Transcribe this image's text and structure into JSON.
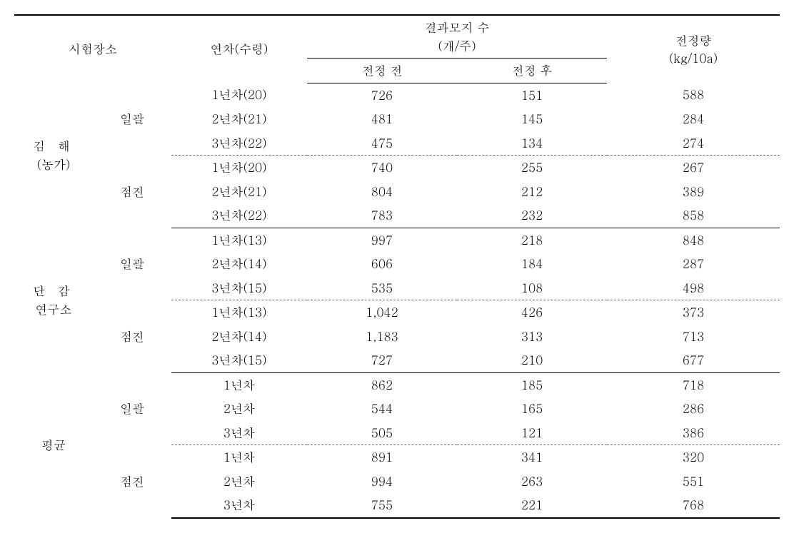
{
  "columns": {
    "site": "시험장소",
    "yearAge": "연차(수령)",
    "branchesGroup": "결과모지 수\n(개/주)",
    "before": "전정 전",
    "after": "전정 후",
    "amount": "전정량\n(kg/10a)"
  },
  "siteLabels": {
    "s1a": "김   해",
    "s1b": "(농가)",
    "s2a": "단   감",
    "s2b": "연구소",
    "s3": "평균"
  },
  "methodLabels": {
    "batch": "일괄",
    "grad": "점진"
  },
  "rows": {
    "s1": {
      "batch": [
        {
          "year": "1년차(20)",
          "before": "726",
          "after": "151",
          "amt": "588"
        },
        {
          "year": "2년차(21)",
          "before": "481",
          "after": "145",
          "amt": "284"
        },
        {
          "year": "3년차(22)",
          "before": "475",
          "after": "134",
          "amt": "274"
        }
      ],
      "grad": [
        {
          "year": "1년차(20)",
          "before": "740",
          "after": "255",
          "amt": "267"
        },
        {
          "year": "2년차(21)",
          "before": "804",
          "after": "212",
          "amt": "389"
        },
        {
          "year": "3년차(22)",
          "before": "783",
          "after": "232",
          "amt": "858"
        }
      ]
    },
    "s2": {
      "batch": [
        {
          "year": "1년차(13)",
          "before": "997",
          "after": "218",
          "amt": "848"
        },
        {
          "year": "2년차(14)",
          "before": "606",
          "after": "184",
          "amt": "287"
        },
        {
          "year": "3년차(15)",
          "before": "535",
          "after": "108",
          "amt": "498"
        }
      ],
      "grad": [
        {
          "year": "1년차(13)",
          "before": "1,042",
          "after": "426",
          "amt": "373"
        },
        {
          "year": "2년차(14)",
          "before": "1,183",
          "after": "313",
          "amt": "713"
        },
        {
          "year": "3년차(15)",
          "before": "727",
          "after": "210",
          "amt": "677"
        }
      ]
    },
    "s3": {
      "batch": [
        {
          "year": "1년차",
          "before": "862",
          "after": "185",
          "amt": "718"
        },
        {
          "year": "2년차",
          "before": "544",
          "after": "165",
          "amt": "286"
        },
        {
          "year": "3년차",
          "before": "505",
          "after": "121",
          "amt": "386"
        }
      ],
      "grad": [
        {
          "year": "1년차",
          "before": "891",
          "after": "341",
          "amt": "320"
        },
        {
          "year": "2년차",
          "before": "994",
          "after": "263",
          "amt": "551"
        },
        {
          "year": "3년차",
          "before": "755",
          "after": "221",
          "amt": "768"
        }
      ]
    }
  }
}
